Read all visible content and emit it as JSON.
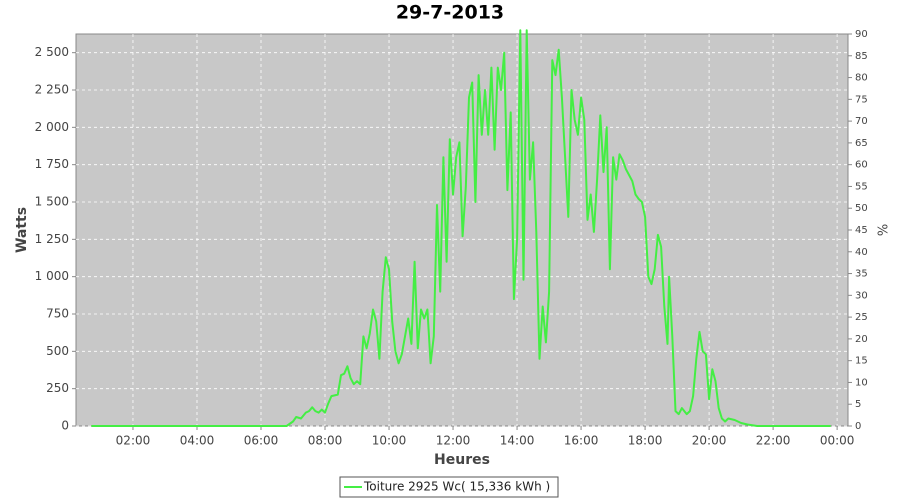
{
  "chart_data": {
    "type": "line",
    "title": "29-7-2013",
    "x_label": "Heures",
    "y_label": "Watts",
    "y2_label": "%",
    "x": [
      0.7,
      6.0,
      6.8,
      7.0,
      7.1,
      7.25,
      7.4,
      7.5,
      7.6,
      7.7,
      7.8,
      7.9,
      8.0,
      8.1,
      8.2,
      8.4,
      8.5,
      8.6,
      8.7,
      8.8,
      8.9,
      9.0,
      9.1,
      9.2,
      9.3,
      9.4,
      9.5,
      9.6,
      9.7,
      9.8,
      9.9,
      10.0,
      10.1,
      10.2,
      10.3,
      10.4,
      10.5,
      10.6,
      10.7,
      10.8,
      10.9,
      11.0,
      11.1,
      11.2,
      11.3,
      11.4,
      11.5,
      11.6,
      11.7,
      11.8,
      11.9,
      12.0,
      12.1,
      12.2,
      12.3,
      12.4,
      12.5,
      12.6,
      12.7,
      12.8,
      12.9,
      13.0,
      13.1,
      13.2,
      13.3,
      13.4,
      13.5,
      13.6,
      13.7,
      13.8,
      13.9,
      14.0,
      14.1,
      14.2,
      14.3,
      14.4,
      14.5,
      14.6,
      14.7,
      14.8,
      14.9,
      15.0,
      15.1,
      15.2,
      15.3,
      15.4,
      15.5,
      15.6,
      15.7,
      15.8,
      15.9,
      16.0,
      16.1,
      16.2,
      16.3,
      16.4,
      16.5,
      16.6,
      16.7,
      16.8,
      16.9,
      17.0,
      17.1,
      17.2,
      17.3,
      17.4,
      17.5,
      17.6,
      17.7,
      17.8,
      17.9,
      18.0,
      18.1,
      18.2,
      18.3,
      18.4,
      18.5,
      18.6,
      18.7,
      18.75,
      18.85,
      18.95,
      19.05,
      19.15,
      19.3,
      19.4,
      19.5,
      19.6,
      19.7,
      19.8,
      19.9,
      20.0,
      20.1,
      20.2,
      20.3,
      20.4,
      20.5,
      20.6,
      20.8,
      21.0,
      21.2,
      21.5,
      23.8
    ],
    "series": [
      {
        "name": "Toiture 2925 Wc( 15,336 kWh )",
        "color": "#44ee44",
        "values": [
          0,
          0,
          0,
          30,
          60,
          50,
          90,
          100,
          125,
          100,
          90,
          110,
          90,
          150,
          200,
          210,
          340,
          350,
          400,
          320,
          280,
          300,
          280,
          600,
          520,
          620,
          780,
          700,
          450,
          900,
          1130,
          1050,
          700,
          500,
          420,
          480,
          600,
          720,
          550,
          1100,
          520,
          780,
          720,
          780,
          420,
          600,
          1480,
          900,
          1800,
          1100,
          1920,
          1550,
          1800,
          1900,
          1270,
          1600,
          2200,
          2300,
          1500,
          2350,
          1950,
          2250,
          1950,
          2400,
          1850,
          2400,
          2250,
          2500,
          1580,
          2100,
          850,
          1250,
          2650,
          980,
          2650,
          1650,
          1900,
          1300,
          450,
          800,
          560,
          900,
          2450,
          2350,
          2520,
          2200,
          1800,
          1400,
          2250,
          2050,
          1950,
          2200,
          2050,
          1380,
          1550,
          1300,
          1650,
          2080,
          1700,
          2000,
          1050,
          1800,
          1650,
          1820,
          1780,
          1720,
          1680,
          1640,
          1550,
          1520,
          1500,
          1400,
          1000,
          950,
          1050,
          1280,
          1200,
          800,
          550,
          1000,
          600,
          100,
          80,
          120,
          80,
          100,
          200,
          450,
          630,
          500,
          480,
          180,
          380,
          300,
          120,
          50,
          30,
          50,
          40,
          20,
          10,
          0,
          0
        ]
      }
    ],
    "xlim": [
      0.22,
      24.34
    ],
    "xticks": [
      {
        "value": 2,
        "label": "02:00"
      },
      {
        "value": 4,
        "label": "04:00"
      },
      {
        "value": 6,
        "label": "06:00"
      },
      {
        "value": 8,
        "label": "08:00"
      },
      {
        "value": 10,
        "label": "10:00"
      },
      {
        "value": 12,
        "label": "12:00"
      },
      {
        "value": 14,
        "label": "14:00"
      },
      {
        "value": 16,
        "label": "16:00"
      },
      {
        "value": 18,
        "label": "18:00"
      },
      {
        "value": 20,
        "label": "20:00"
      },
      {
        "value": 22,
        "label": "22:00"
      },
      {
        "value": 24,
        "label": "00:00"
      }
    ],
    "ylim": [
      0,
      2625
    ],
    "yticks": [
      0,
      250,
      500,
      750,
      {
        "value": 1000,
        "label": "1 000"
      },
      {
        "value": 1250,
        "label": "1 250"
      },
      {
        "value": 1500,
        "label": "1 500"
      },
      {
        "value": 1750,
        "label": "1 750"
      },
      {
        "value": 2000,
        "label": "2 000"
      },
      {
        "value": 2250,
        "label": "2 250"
      },
      {
        "value": 2500,
        "label": "2 500"
      }
    ],
    "y2lim": [
      0,
      90
    ],
    "y2ticks": [
      0,
      5,
      10,
      15,
      20,
      25,
      30,
      35,
      40,
      45,
      50,
      55,
      60,
      65,
      70,
      75,
      80,
      85,
      90
    ],
    "grid": true,
    "legend": "bottom"
  }
}
